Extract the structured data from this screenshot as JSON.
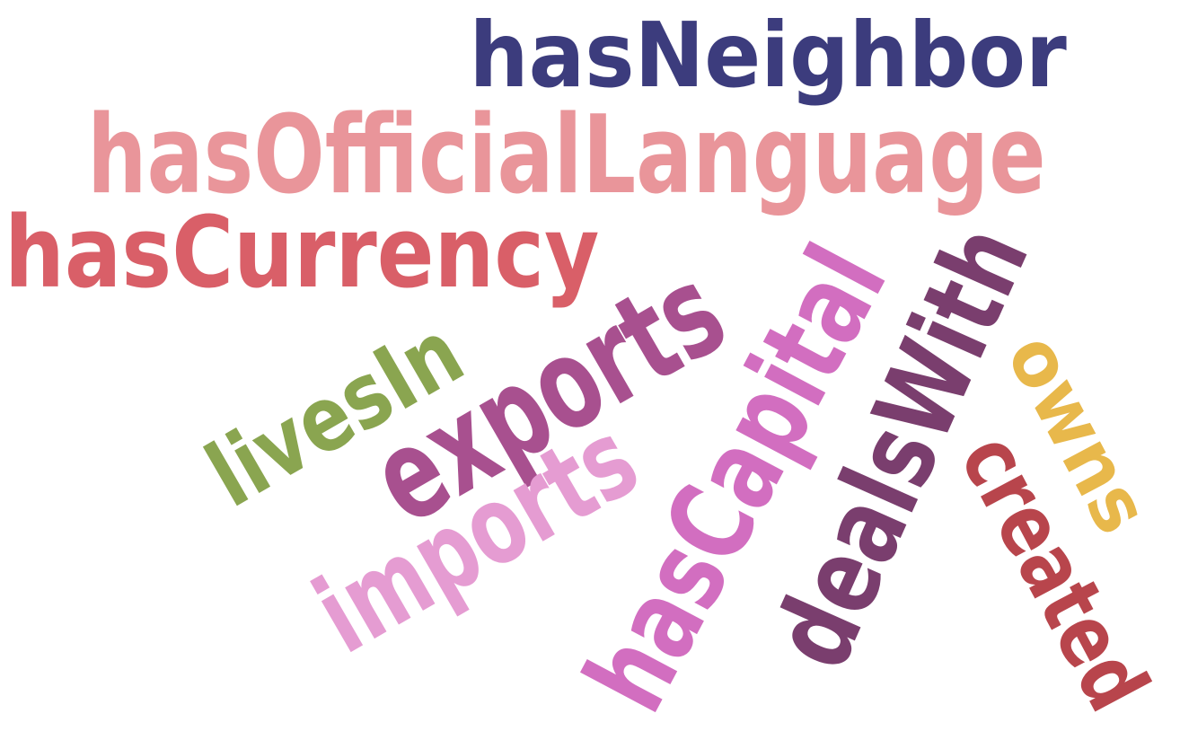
{
  "words": [
    {
      "text": "hasNeighbor",
      "color": "#3c3c7d",
      "orientation": "horizontal"
    },
    {
      "text": "hasOfficialLanguage",
      "color": "#e9959a",
      "orientation": "horizontal"
    },
    {
      "text": "hasCurrency",
      "color": "#d95f68",
      "orientation": "horizontal"
    },
    {
      "text": "exports",
      "color": "#a8508f",
      "orientation": "rotated"
    },
    {
      "text": "livesIn",
      "color": "#8aa550",
      "orientation": "rotated"
    },
    {
      "text": "imports",
      "color": "#e59cd2",
      "orientation": "rotated"
    },
    {
      "text": "hasCapital",
      "color": "#d26ec0",
      "orientation": "rotated"
    },
    {
      "text": "dealsWith",
      "color": "#7a3e6e",
      "orientation": "rotated"
    },
    {
      "text": "owns",
      "color": "#e8b84b",
      "orientation": "rotated"
    },
    {
      "text": "created",
      "color": "#b8454c",
      "orientation": "rotated"
    }
  ]
}
